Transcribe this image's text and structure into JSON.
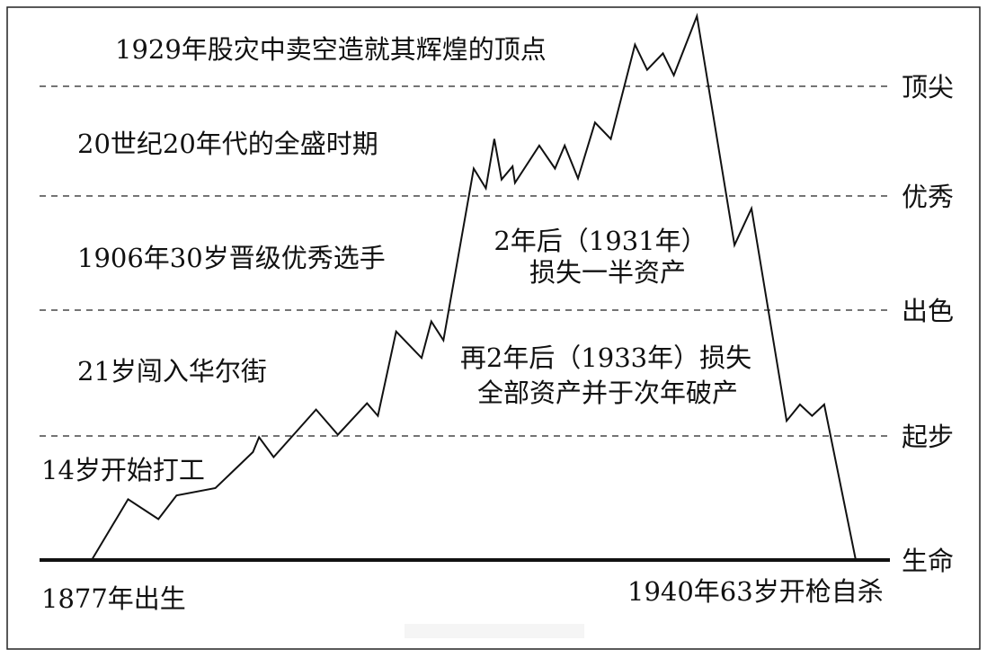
{
  "chart_data": {
    "type": "line",
    "title": "",
    "xlabel": "",
    "ylabel": "",
    "grid": "horizontal dashed lines at each level",
    "levels": [
      "生命",
      "起步",
      "出色",
      "优秀",
      "顶尖"
    ],
    "ylim": [
      0,
      4.7
    ],
    "xlim": [
      1877,
      1940
    ],
    "series": [
      {
        "color": "#111111",
        "points": [
          [
            1877.0,
            0
          ],
          [
            1880.0,
            0.49
          ],
          [
            1882.5,
            0.33
          ],
          [
            1884.0,
            0.52
          ],
          [
            1887.2,
            0.58
          ],
          [
            1890.3,
            0.87
          ],
          [
            1890.8,
            0.99
          ],
          [
            1892.0,
            0.83
          ],
          [
            1895.5,
            1.21
          ],
          [
            1897.3,
            1.01
          ],
          [
            1899.7,
            1.26
          ],
          [
            1900.6,
            1.16
          ],
          [
            1902.1,
            1.83
          ],
          [
            1904.2,
            1.62
          ],
          [
            1905.0,
            1.91
          ],
          [
            1906.0,
            1.76
          ],
          [
            1908.5,
            3.25
          ],
          [
            1909.5,
            3.07
          ],
          [
            1910.2,
            3.52
          ],
          [
            1910.8,
            3.15
          ],
          [
            1911.7,
            3.27
          ],
          [
            1911.9,
            3.12
          ],
          [
            1913.9,
            3.46
          ],
          [
            1915.2,
            3.25
          ],
          [
            1916.0,
            3.46
          ],
          [
            1917.1,
            3.16
          ],
          [
            1918.5,
            3.67
          ],
          [
            1919.8,
            3.52
          ],
          [
            1921.8,
            4.38
          ],
          [
            1922.8,
            4.15
          ],
          [
            1924.1,
            4.3
          ],
          [
            1925.0,
            4.1
          ],
          [
            1926.9,
            4.64
          ],
          [
            1930.0,
            2.57
          ],
          [
            1931.4,
            2.89
          ],
          [
            1934.3,
            1.12
          ],
          [
            1935.4,
            1.25
          ],
          [
            1936.4,
            1.16
          ],
          [
            1937.4,
            1.25
          ],
          [
            1940.0,
            0
          ]
        ]
      }
    ],
    "annotations": {
      "peak": "1929年股灾中卖空造就其辉煌的顶点",
      "heyday": "20世纪20年代的全盛时期",
      "excellent": "1906年30岁晋级优秀选手",
      "wall_street": "21岁闯入华尔街",
      "work": "14岁开始打工",
      "birth": "1877年出生",
      "death": "1940年63岁开枪自杀",
      "loss_half_1": "2年后（1931年）",
      "loss_half_2": "损失一半资产",
      "loss_all_1": "再2年后（1933年）损失",
      "loss_all_2": "全部资产并于次年破产"
    }
  }
}
